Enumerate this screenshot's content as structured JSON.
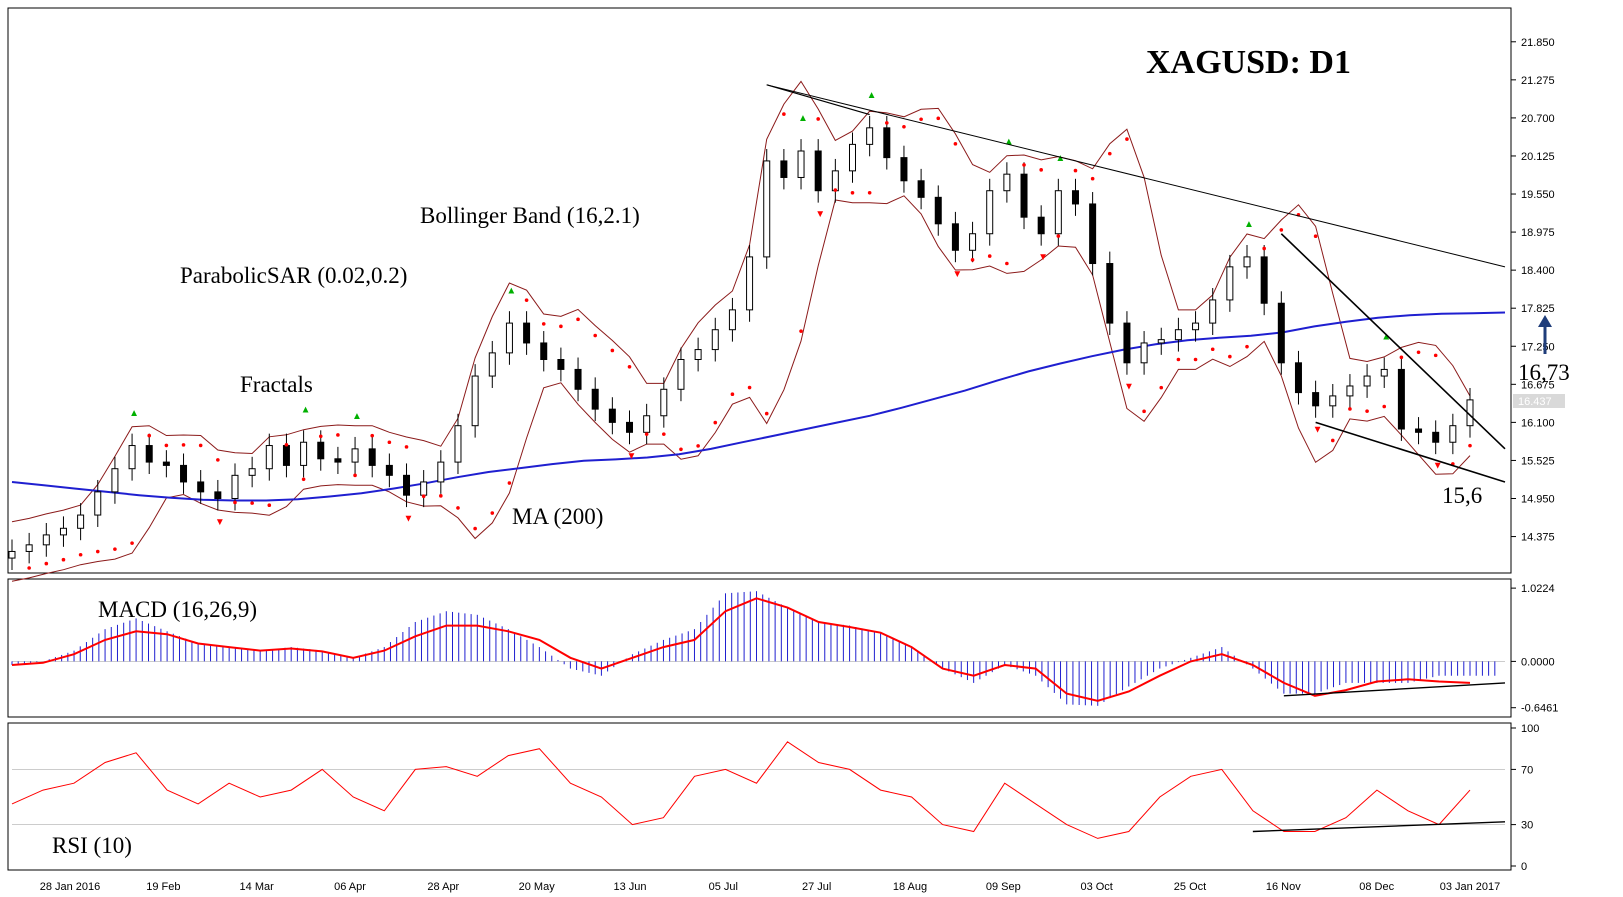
{
  "title": "XAGUSD: D1",
  "colors": {
    "background": "#ffffff",
    "candle_up": "#ffffff",
    "candle_down": "#000000",
    "ma": "#1f1fd0",
    "bollinger": "#8b1a1a",
    "sar": "#ff0000",
    "fractal_up": "#00b000",
    "fractal_down": "#ff0000",
    "macd_hist": "#1f1fd0",
    "macd_signal": "#ff0000",
    "rsi": "#ff0000",
    "trend": "#000000",
    "price_box": "#d9d9d9"
  },
  "labels": {
    "fractals": "Fractals",
    "sar": "ParabolicSAR (0.02,0.2)",
    "bollinger": "Bollinger Band (16,2.1)",
    "ma": "MA (200)",
    "macd": "MACD (16,26,9)",
    "rsi": "RSI (10)",
    "level_high": "16,73",
    "level_low": "15,6",
    "current_price": "16.437"
  },
  "chart_data": [
    {
      "type": "line",
      "panel": "price",
      "title": "XAGUSD: D1",
      "y_ticks": [
        "21.850",
        "21.275",
        "20.700",
        "20.125",
        "19.550",
        "18.975",
        "18.400",
        "17.825",
        "17.250",
        "16.675",
        "16.100",
        "15.525",
        "14.950",
        "14.375"
      ],
      "ylim": [
        13.9,
        22.3
      ],
      "x_ticks": [
        "28 Jan 2016",
        "19 Feb",
        "14 Mar",
        "06 Apr",
        "28 Apr",
        "20 May",
        "13 Jun",
        "05 Jul",
        "27 Jul",
        "18 Aug",
        "09 Sep",
        "03 Oct",
        "25 Oct",
        "16 Nov",
        "08 Dec",
        "03 Jan 2017"
      ],
      "close": [
        14.15,
        14.25,
        14.4,
        14.5,
        14.7,
        15.05,
        15.4,
        15.75,
        15.5,
        15.45,
        15.2,
        15.05,
        14.95,
        15.3,
        15.4,
        15.75,
        15.45,
        15.8,
        15.55,
        15.5,
        15.7,
        15.45,
        15.3,
        15.0,
        15.2,
        15.5,
        16.05,
        16.8,
        17.15,
        17.6,
        17.3,
        17.05,
        16.9,
        16.6,
        16.3,
        16.1,
        15.95,
        16.2,
        16.6,
        17.05,
        17.2,
        17.5,
        17.8,
        18.6,
        20.05,
        19.8,
        20.2,
        19.6,
        19.9,
        20.3,
        20.55,
        20.1,
        19.75,
        19.5,
        19.1,
        18.7,
        18.95,
        19.6,
        19.85,
        19.2,
        18.95,
        19.6,
        19.4,
        18.5,
        17.6,
        17.0,
        17.3,
        17.35,
        17.5,
        17.6,
        17.95,
        18.45,
        18.6,
        17.9,
        17.0,
        16.55,
        16.35,
        16.5,
        16.65,
        16.8,
        16.9,
        16.0,
        15.95,
        15.8,
        16.05,
        16.44
      ],
      "ma200": [
        15.2,
        15.15,
        15.1,
        15.05,
        15.0,
        14.96,
        14.93,
        14.92,
        14.92,
        14.94,
        14.98,
        15.03,
        15.1,
        15.18,
        15.27,
        15.35,
        15.41,
        15.47,
        15.52,
        15.54,
        15.57,
        15.62,
        15.7,
        15.8,
        15.9,
        16.0,
        16.1,
        16.2,
        16.32,
        16.45,
        16.58,
        16.73,
        16.87,
        16.99,
        17.1,
        17.2,
        17.28,
        17.34,
        17.38,
        17.41,
        17.46,
        17.55,
        17.62,
        17.68,
        17.72,
        17.74,
        17.75,
        17.76
      ]
    },
    {
      "type": "bar",
      "panel": "macd",
      "title": "MACD (16,26,9)",
      "y_ticks": [
        "1.0224",
        "0.0000",
        "-0.6461"
      ],
      "ylim": [
        -0.72,
        1.08
      ],
      "histogram": [
        -0.05,
        0.0,
        0.15,
        0.45,
        0.6,
        0.42,
        0.25,
        0.2,
        0.15,
        0.2,
        0.15,
        0.05,
        0.2,
        0.55,
        0.7,
        0.65,
        0.45,
        0.2,
        -0.1,
        -0.2,
        0.1,
        0.3,
        0.45,
        0.95,
        0.98,
        0.75,
        0.55,
        0.5,
        0.4,
        0.2,
        -0.1,
        -0.3,
        -0.05,
        -0.2,
        -0.6,
        -0.62,
        -0.35,
        -0.1,
        0.05,
        0.2,
        -0.1,
        -0.45,
        -0.45,
        -0.3,
        -0.3,
        -0.3,
        -0.2,
        -0.2
      ],
      "signal": [
        -0.05,
        -0.02,
        0.1,
        0.3,
        0.42,
        0.38,
        0.25,
        0.2,
        0.15,
        0.18,
        0.14,
        0.05,
        0.15,
        0.35,
        0.5,
        0.5,
        0.42,
        0.3,
        0.05,
        -0.1,
        0.05,
        0.2,
        0.3,
        0.7,
        0.88,
        0.75,
        0.55,
        0.48,
        0.4,
        0.2,
        -0.1,
        -0.2,
        -0.05,
        -0.1,
        -0.45,
        -0.55,
        -0.42,
        -0.2,
        0.0,
        0.1,
        -0.05,
        -0.3,
        -0.48,
        -0.4,
        -0.28,
        -0.25,
        -0.28,
        -0.3
      ]
    },
    {
      "type": "line",
      "panel": "rsi",
      "title": "RSI (10)",
      "y_ticks": [
        "100",
        "70",
        "30",
        "0"
      ],
      "ylim": [
        0,
        100
      ],
      "values": [
        45,
        55,
        60,
        75,
        82,
        55,
        45,
        60,
        50,
        55,
        70,
        50,
        40,
        70,
        72,
        65,
        80,
        85,
        60,
        50,
        30,
        35,
        65,
        70,
        60,
        90,
        75,
        70,
        55,
        50,
        30,
        25,
        60,
        45,
        30,
        20,
        25,
        50,
        65,
        70,
        40,
        25,
        25,
        35,
        55,
        40,
        30,
        55
      ]
    }
  ]
}
